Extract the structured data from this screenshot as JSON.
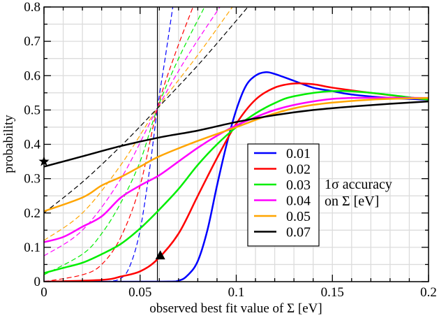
{
  "chart_data": {
    "type": "line",
    "title": "",
    "xlabel": "observed best fit value of Σ [eV]",
    "ylabel": "probability",
    "xlim": [
      0,
      0.2
    ],
    "ylim": [
      0,
      0.8
    ],
    "xticks": [
      "0",
      "0.05",
      "0.1",
      "0.15",
      "0.2"
    ],
    "yticks": [
      "0",
      "0.1",
      "0.2",
      "0.3",
      "0.4",
      "0.5",
      "0.6",
      "0.7",
      "0.8"
    ],
    "grid": true,
    "legend_position": "center-right",
    "legend_title": [
      "1σ accuracy",
      "on Σ [eV]"
    ],
    "vertical_line_x": 0.059,
    "markers": [
      {
        "shape": "star",
        "x": 0,
        "y": 0.35
      },
      {
        "shape": "triangle",
        "x": 0.0605,
        "y": 0.075
      }
    ],
    "series": [
      {
        "name": "0.01",
        "color": "#0000ff",
        "style": "solid",
        "x": [
          0,
          0.06,
          0.07,
          0.075,
          0.08,
          0.085,
          0.09,
          0.095,
          0.1,
          0.105,
          0.11,
          0.115,
          0.12,
          0.13,
          0.14,
          0.15,
          0.16,
          0.18,
          0.2
        ],
        "y": [
          0,
          0,
          0.003,
          0.02,
          0.06,
          0.15,
          0.28,
          0.4,
          0.5,
          0.57,
          0.6,
          0.61,
          0.605,
          0.585,
          0.565,
          0.555,
          0.545,
          0.535,
          0.53
        ]
      },
      {
        "name": "0.02",
        "color": "#ff0000",
        "style": "solid",
        "x": [
          0,
          0.03,
          0.04,
          0.05,
          0.059,
          0.07,
          0.08,
          0.09,
          0.1,
          0.11,
          0.12,
          0.13,
          0.14,
          0.15,
          0.17,
          0.2
        ],
        "y": [
          0,
          0.005,
          0.015,
          0.03,
          0.065,
          0.14,
          0.25,
          0.36,
          0.46,
          0.53,
          0.565,
          0.577,
          0.575,
          0.565,
          0.55,
          0.53
        ]
      },
      {
        "name": "0.03",
        "color": "#00ee00",
        "style": "solid",
        "x": [
          0,
          0.01,
          0.02,
          0.03,
          0.04,
          0.05,
          0.06,
          0.07,
          0.08,
          0.09,
          0.1,
          0.11,
          0.12,
          0.13,
          0.15,
          0.17,
          0.2
        ],
        "y": [
          0.025,
          0.04,
          0.055,
          0.08,
          0.11,
          0.155,
          0.21,
          0.27,
          0.34,
          0.4,
          0.45,
          0.49,
          0.52,
          0.54,
          0.555,
          0.55,
          0.53
        ]
      },
      {
        "name": "0.04",
        "color": "#ff00ff",
        "style": "solid",
        "x": [
          0,
          0.01,
          0.02,
          0.03,
          0.04,
          0.05,
          0.06,
          0.07,
          0.08,
          0.09,
          0.1,
          0.12,
          0.14,
          0.16,
          0.2
        ],
        "y": [
          0.115,
          0.13,
          0.16,
          0.19,
          0.245,
          0.28,
          0.31,
          0.35,
          0.39,
          0.425,
          0.455,
          0.5,
          0.525,
          0.535,
          0.535
        ]
      },
      {
        "name": "0.05",
        "color": "#ffa500",
        "style": "solid",
        "x": [
          0,
          0.02,
          0.03,
          0.04,
          0.05,
          0.06,
          0.08,
          0.1,
          0.12,
          0.14,
          0.17,
          0.2
        ],
        "y": [
          0.205,
          0.245,
          0.28,
          0.305,
          0.335,
          0.365,
          0.41,
          0.45,
          0.49,
          0.515,
          0.53,
          0.535
        ]
      },
      {
        "name": "0.07",
        "color": "#000000",
        "style": "solid",
        "x": [
          0,
          0.02,
          0.04,
          0.06,
          0.08,
          0.1,
          0.12,
          0.14,
          0.16,
          0.18,
          0.2
        ],
        "y": [
          0.335,
          0.365,
          0.395,
          0.42,
          0.44,
          0.465,
          0.485,
          0.5,
          0.51,
          0.518,
          0.525
        ]
      },
      {
        "color": "#0000ff",
        "style": "dashed",
        "x": [
          0,
          0.03,
          0.04,
          0.045,
          0.05,
          0.055,
          0.059,
          0.063,
          0.067
        ],
        "y": [
          0,
          0,
          0.01,
          0.05,
          0.15,
          0.33,
          0.505,
          0.65,
          0.8
        ]
      },
      {
        "color": "#ff0000",
        "style": "dashed",
        "x": [
          0,
          0.02,
          0.03,
          0.04,
          0.05,
          0.059,
          0.068,
          0.0775
        ],
        "y": [
          0,
          0.02,
          0.05,
          0.13,
          0.28,
          0.505,
          0.66,
          0.8
        ]
      },
      {
        "color": "#00ee00",
        "style": "dashed",
        "x": [
          0,
          0.02,
          0.03,
          0.04,
          0.05,
          0.059,
          0.07,
          0.0835
        ],
        "y": [
          0.02,
          0.08,
          0.14,
          0.23,
          0.35,
          0.505,
          0.65,
          0.8
        ]
      },
      {
        "color": "#ff00ff",
        "style": "dashed",
        "x": [
          0,
          0.02,
          0.04,
          0.059,
          0.075,
          0.0915
        ],
        "y": [
          0.075,
          0.15,
          0.3,
          0.505,
          0.66,
          0.8
        ]
      },
      {
        "color": "#ffa500",
        "style": "dashed",
        "x": [
          0,
          0.02,
          0.04,
          0.059,
          0.08,
          0.098
        ],
        "y": [
          0.12,
          0.2,
          0.34,
          0.505,
          0.66,
          0.8
        ]
      },
      {
        "color": "#000000",
        "style": "dashed",
        "x": [
          0,
          0.02,
          0.04,
          0.059,
          0.08,
          0.1,
          0.106
        ],
        "y": [
          0.2,
          0.29,
          0.395,
          0.505,
          0.63,
          0.76,
          0.8
        ]
      }
    ]
  }
}
